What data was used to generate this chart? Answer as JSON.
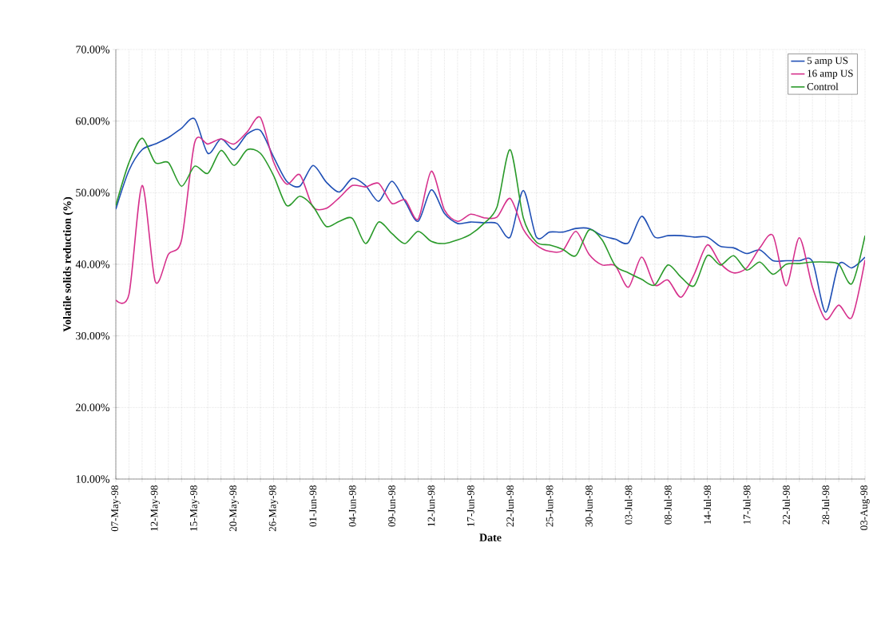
{
  "chart_data": {
    "type": "line",
    "xlabel": "Date",
    "ylabel": "Volatile solids reduction (%)",
    "categories": [
      "07-May-98",
      null,
      null,
      "12-May-98",
      null,
      null,
      "15-May-98",
      null,
      null,
      "20-May-98",
      null,
      null,
      "26-May-98",
      null,
      null,
      "01-Jun-98",
      null,
      null,
      "04-Jun-98",
      null,
      null,
      "09-Jun-98",
      null,
      null,
      "12-Jun-98",
      null,
      null,
      "17-Jun-98",
      null,
      null,
      "22-Jun-98",
      null,
      null,
      "25-Jun-98",
      null,
      null,
      "30-Jun-98",
      null,
      null,
      "03-Jul-98",
      null,
      null,
      "08-Jul-98",
      null,
      null,
      "14-Jul-98",
      null,
      null,
      "17-Jul-98",
      null,
      null,
      "22-Jul-98",
      null,
      null,
      "28-Jul-98",
      null,
      null,
      "03-Aug-98"
    ],
    "series": [
      {
        "name": "5 amp US",
        "color": "#1f4fb5",
        "values": [
          47.7,
          53.1,
          56,
          56.8,
          57.7,
          59,
          60.3,
          55.5,
          57.5,
          56,
          58.2,
          58.7,
          55,
          51.6,
          50.9,
          53.8,
          51.5,
          50.1,
          52,
          51,
          48.8,
          51.6,
          48.8,
          46,
          50.4,
          47.1,
          45.7,
          45.9,
          45.8,
          45.7,
          43.8,
          50.3,
          43.8,
          44.5,
          44.5,
          45,
          45,
          44,
          43.5,
          43,
          46.7,
          43.8,
          44,
          44,
          43.8,
          43.8,
          42.5,
          42.3,
          41.5,
          42,
          40.5,
          40.5,
          40.5,
          40.4,
          33.3,
          40,
          39.5,
          41
        ]
      },
      {
        "name": "16 amp US",
        "color": "#d6308c",
        "values": [
          35,
          35.8,
          51,
          37.6,
          41.4,
          43.4,
          57,
          56.8,
          57.5,
          56.8,
          58.5,
          60.5,
          54.3,
          51.2,
          52.5,
          48,
          47.8,
          49.3,
          51,
          50.8,
          51.3,
          48.5,
          49,
          46.3,
          53,
          47.6,
          46,
          47,
          46.5,
          46.6,
          49.2,
          44.9,
          42.7,
          41.8,
          41.9,
          44.6,
          41.4,
          39.9,
          39.8,
          36.8,
          41,
          37.1,
          37.8,
          35.4,
          38.6,
          42.7,
          40.1,
          38.8,
          39.5,
          42.3,
          44,
          37,
          43.7,
          36.8,
          32.3,
          34.3,
          32.6,
          40.6
        ]
      },
      {
        "name": "Control",
        "color": "#2a9a2a",
        "values": [
          48.2,
          54.2,
          57.6,
          54.2,
          54.2,
          50.9,
          53.7,
          52.7,
          55.9,
          53.8,
          56,
          55.5,
          52.4,
          48.2,
          49.5,
          48.1,
          45.3,
          46,
          46.4,
          42.9,
          45.9,
          44.3,
          42.9,
          44.6,
          43.2,
          42.9,
          43.4,
          44.2,
          45.7,
          48,
          56,
          46.5,
          43.1,
          42.7,
          42.1,
          41.2,
          44.8,
          43.4,
          39.8,
          38.8,
          37.9,
          37.1,
          39.9,
          38.2,
          37,
          41.2,
          39.9,
          41.2,
          39.2,
          40.3,
          38.6,
          40,
          40.1,
          40.3,
          40.3,
          40,
          37.3,
          44
        ]
      }
    ],
    "ylim": [
      10,
      70
    ],
    "yticks": [
      {
        "value": 10,
        "label": "10.00%"
      },
      {
        "value": 20,
        "label": "20.00%"
      },
      {
        "value": 30,
        "label": "30.00%"
      },
      {
        "value": 40,
        "label": "40.00%"
      },
      {
        "value": 50,
        "label": "50.00%"
      },
      {
        "value": 60,
        "label": "60.00%"
      },
      {
        "value": 70,
        "label": "70.00%"
      }
    ],
    "grid": true,
    "legend": "top right",
    "marker": "none",
    "line_style": "solid"
  }
}
